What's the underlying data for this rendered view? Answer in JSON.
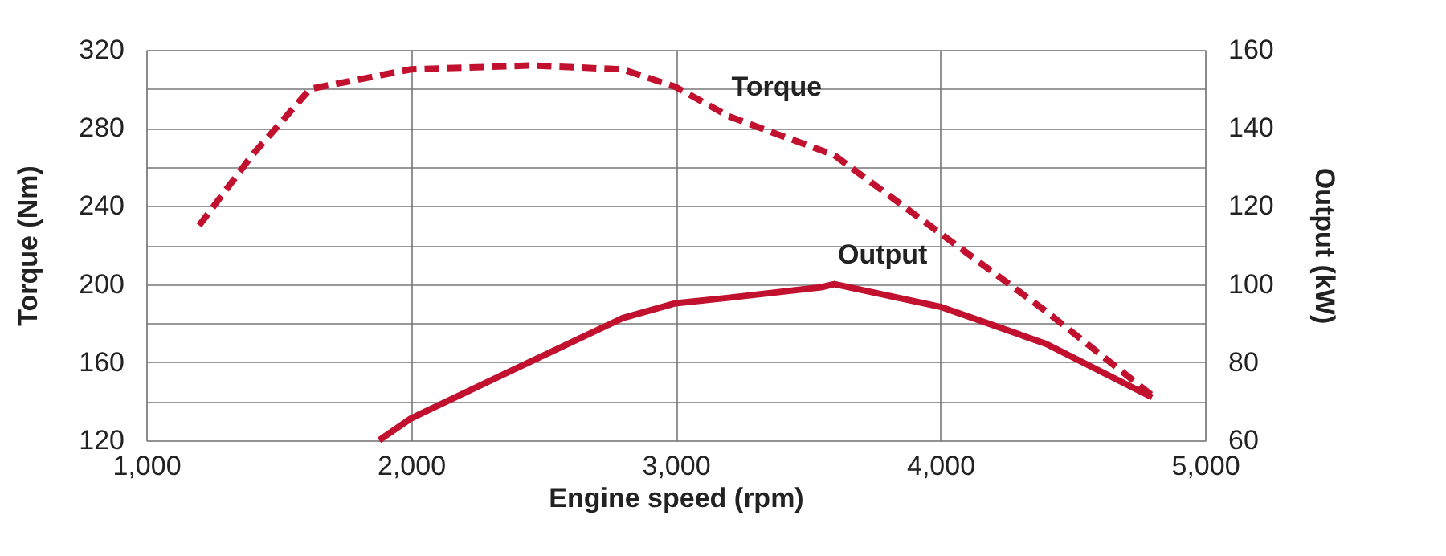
{
  "chart_data": {
    "type": "line",
    "xlabel": "Engine speed (rpm)",
    "ylabel": "Torque (Nm)",
    "y2label": "Output (kW)",
    "series": [
      {
        "name": "Torque",
        "color": "#c1112f",
        "line_style": "dashed",
        "x": [
          1200,
          1400,
          1620,
          2000,
          2460,
          2800,
          3000,
          3200,
          3600,
          4000,
          4400,
          4800
        ],
        "values": [
          230,
          266,
          300,
          310,
          312,
          310,
          301,
          286,
          266,
          226,
          186,
          143
        ]
      },
      {
        "name": "Output",
        "color": "#c1112f",
        "line_style": "solid",
        "axis": "y2",
        "x": [
          1880,
          2000,
          2400,
          2800,
          3000,
          3200,
          3550,
          3600,
          4000,
          4400,
          4800
        ],
        "values": [
          60,
          65.6,
          78.5,
          91.3,
          95.1,
          96.5,
          99.2,
          100,
          94.2,
          84.7,
          71
        ]
      }
    ],
    "xlim": [
      1000,
      5000
    ],
    "xticks": [
      {
        "value": 1000,
        "label": "1,000"
      },
      {
        "value": 2000,
        "label": "2,000"
      },
      {
        "value": 3000,
        "label": "3,000"
      },
      {
        "value": 4000,
        "label": "4,000"
      },
      {
        "value": 5000,
        "label": "5,000"
      }
    ],
    "ylim": [
      120,
      320
    ],
    "yticks": [
      120,
      {
        "value": 140,
        "label": null
      },
      160,
      {
        "value": 180,
        "label": null
      },
      200,
      {
        "value": 220,
        "label": null
      },
      240,
      {
        "value": 260,
        "label": null
      },
      280,
      {
        "value": 300,
        "label": null
      },
      320
    ],
    "y2lim": [
      60,
      160
    ],
    "y2ticks": [
      60,
      80,
      100,
      120,
      140,
      160
    ],
    "grid": true,
    "marker": "none"
  }
}
